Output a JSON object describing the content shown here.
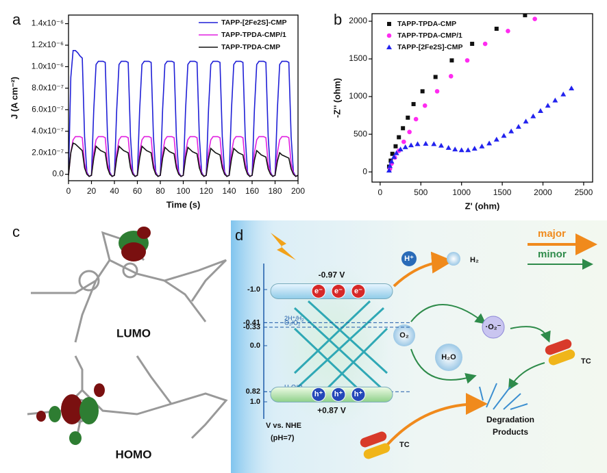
{
  "chart_data": [
    {
      "type": "line",
      "panel_label": "a",
      "xlabel": "Time (s)",
      "ylabel": "J (A cm⁻²)",
      "x": [
        0,
        2,
        4,
        6,
        8,
        10,
        12,
        14,
        16,
        18,
        20,
        22,
        24,
        26,
        28,
        30,
        32,
        34,
        36,
        38,
        40,
        42,
        44,
        46,
        48,
        50,
        52,
        54,
        56,
        58,
        60,
        62,
        64,
        66,
        68,
        70,
        72,
        74,
        76,
        78,
        80,
        82,
        84,
        86,
        88,
        90,
        92,
        94,
        96,
        98,
        100,
        102,
        104,
        106,
        108,
        110,
        112,
        114,
        116,
        118,
        120,
        122,
        124,
        126,
        128,
        130,
        132,
        134,
        136,
        138,
        140,
        142,
        144,
        146,
        148,
        150,
        152,
        154,
        156,
        158,
        160,
        162,
        164,
        166,
        168,
        170,
        172,
        174,
        176,
        178,
        180,
        182,
        184,
        186,
        188,
        190,
        192,
        194,
        196,
        198,
        200
      ],
      "xlim": [
        0,
        200
      ],
      "xticks": [
        0,
        20,
        40,
        60,
        80,
        100,
        120,
        140,
        160,
        180,
        200
      ],
      "ylim": [
        -6e-08,
        1.48e-06
      ],
      "yticks": [
        {
          "value": 0,
          "label": "0.0"
        },
        {
          "value": 2e-07,
          "label": "2.0x10⁻⁷"
        },
        {
          "value": 4e-07,
          "label": "4.0x10⁻⁷"
        },
        {
          "value": 6e-07,
          "label": "6.0x10⁻⁷"
        },
        {
          "value": 8e-07,
          "label": "8.0x10⁻⁷"
        },
        {
          "value": 1e-06,
          "label": "1.0x10⁻⁶"
        },
        {
          "value": 1.2e-06,
          "label": "1.2x10⁻⁶"
        },
        {
          "value": 1.4e-06,
          "label": "1.4x10⁻⁶"
        }
      ],
      "legend": "upper right",
      "series": [
        {
          "name": "TAPP-[2Fe2S]-CMP",
          "color": "#1f1fd6",
          "values": [
            -1e-08,
            9e-07,
            1.15e-06,
            1.15e-06,
            1.13e-06,
            1.1e-06,
            1.08e-06,
            3.5e-07,
            2e-08,
            -2e-08,
            -1e-08,
            6e-07,
            1.02e-06,
            1.05e-06,
            1.05e-06,
            1.05e-06,
            1.04e-06,
            3.5e-07,
            2e-08,
            -2e-08,
            -1e-08,
            6e-07,
            1.02e-06,
            1.05e-06,
            1.05e-06,
            1.05e-06,
            1.04e-06,
            3.5e-07,
            2e-08,
            -2e-08,
            -1e-08,
            6e-07,
            1.02e-06,
            1.05e-06,
            1.05e-06,
            1.05e-06,
            1.04e-06,
            3.5e-07,
            2e-08,
            -2e-08,
            -1e-08,
            6e-07,
            1.02e-06,
            1.05e-06,
            1.05e-06,
            1.05e-06,
            1.04e-06,
            3.5e-07,
            2e-08,
            -2e-08,
            -1e-08,
            6e-07,
            1.02e-06,
            1.05e-06,
            1.05e-06,
            1.05e-06,
            1.04e-06,
            3.5e-07,
            2e-08,
            -2e-08,
            -1e-08,
            6e-07,
            1.02e-06,
            1.05e-06,
            1.05e-06,
            1.05e-06,
            1.04e-06,
            3.5e-07,
            2e-08,
            -2e-08,
            -1e-08,
            6e-07,
            1.02e-06,
            1.05e-06,
            1.05e-06,
            1.05e-06,
            1.04e-06,
            3.5e-07,
            2e-08,
            -2e-08,
            -1e-08,
            6e-07,
            1.02e-06,
            1.05e-06,
            1.05e-06,
            1.05e-06,
            1.04e-06,
            3.5e-07,
            2e-08,
            -2e-08,
            -1e-08,
            6e-07,
            1.02e-06,
            1.05e-06,
            1.05e-06,
            1.05e-06,
            1.04e-06,
            3.5e-07,
            2e-08,
            -2e-08,
            -1e-08
          ]
        },
        {
          "name": "TAPP-TPDA-CMP/1",
          "color": "#e01fe0",
          "values": [
            -1e-08,
            2e-07,
            3.2e-07,
            3.5e-07,
            3.5e-07,
            3.5e-07,
            3.4e-07,
            1e-07,
            1e-08,
            -2e-08,
            -1e-08,
            2e-07,
            3.2e-07,
            3.5e-07,
            3.5e-07,
            3.5e-07,
            3.4e-07,
            1e-07,
            1e-08,
            -2e-08,
            -1e-08,
            2e-07,
            3.2e-07,
            3.5e-07,
            3.5e-07,
            3.5e-07,
            3.4e-07,
            1e-07,
            1e-08,
            -2e-08,
            -1e-08,
            2e-07,
            3.2e-07,
            3.5e-07,
            3.5e-07,
            3.5e-07,
            3.4e-07,
            1e-07,
            1e-08,
            -2e-08,
            -1e-08,
            2e-07,
            3.2e-07,
            3.5e-07,
            3.5e-07,
            3.5e-07,
            3.4e-07,
            1e-07,
            1e-08,
            -2e-08,
            -1e-08,
            2e-07,
            3.2e-07,
            3.5e-07,
            3.5e-07,
            3.5e-07,
            3.4e-07,
            1e-07,
            1e-08,
            -2e-08,
            -1e-08,
            2e-07,
            3.2e-07,
            3.5e-07,
            3.5e-07,
            3.5e-07,
            3.4e-07,
            1e-07,
            1e-08,
            -2e-08,
            -1e-08,
            2e-07,
            3.2e-07,
            3.5e-07,
            3.5e-07,
            3.5e-07,
            3.4e-07,
            1e-07,
            1e-08,
            -2e-08,
            -1e-08,
            2e-07,
            3.2e-07,
            3.5e-07,
            3.5e-07,
            3.5e-07,
            3.4e-07,
            1e-07,
            1e-08,
            -2e-08,
            -1e-08,
            2e-07,
            3.2e-07,
            3.5e-07,
            3.5e-07,
            3.5e-07,
            3.4e-07,
            1e-07,
            1e-08,
            -2e-08,
            -1e-08
          ]
        },
        {
          "name": "TAPP-TPDA-CMP",
          "color": "#111111",
          "values": [
            -1e-08,
            2e-07,
            2.9e-07,
            2.8e-07,
            2.6e-07,
            2.4e-07,
            2.2e-07,
            6e-08,
            0,
            -2e-08,
            -1e-08,
            1.5e-07,
            2.6e-07,
            2.4e-07,
            2.2e-07,
            2.1e-07,
            2e-07,
            6e-08,
            0,
            -2e-08,
            -1e-08,
            1.5e-07,
            2.6e-07,
            2.4e-07,
            2.2e-07,
            2.1e-07,
            2e-07,
            6e-08,
            0,
            -2e-08,
            -1e-08,
            1.5e-07,
            2.6e-07,
            2.4e-07,
            2.2e-07,
            2.1e-07,
            2e-07,
            6e-08,
            0,
            -2e-08,
            -1e-08,
            1.5e-07,
            2.5e-07,
            2.3e-07,
            2.1e-07,
            2e-07,
            1.9e-07,
            6e-08,
            0,
            -2e-08,
            -1e-08,
            1.5e-07,
            2.5e-07,
            2.3e-07,
            2.1e-07,
            2e-07,
            1.9e-07,
            6e-08,
            0,
            -2e-08,
            -1e-08,
            1.4e-07,
            2.4e-07,
            2.2e-07,
            2e-07,
            1.9e-07,
            1.8e-07,
            6e-08,
            0,
            -2e-08,
            -1e-08,
            1.4e-07,
            2.4e-07,
            2.2e-07,
            2e-07,
            1.9e-07,
            1.8e-07,
            6e-08,
            0,
            -2e-08,
            -1e-08,
            1.3e-07,
            2.2e-07,
            2e-07,
            1.8e-07,
            1.7e-07,
            1.6e-07,
            5e-08,
            0,
            -2e-08,
            -1e-08,
            1.2e-07,
            2e-07,
            1.8e-07,
            1.7e-07,
            1.6e-07,
            1.5e-07,
            5e-08,
            0,
            -2e-08,
            -1e-08
          ]
        }
      ]
    },
    {
      "type": "scatter",
      "panel_label": "b",
      "xlabel": "Z' (ohm)",
      "ylabel": "-Z'' (ohm)",
      "xlim": [
        -100,
        2610
      ],
      "xticks": [
        0,
        500,
        1000,
        1500,
        2000,
        2500
      ],
      "ylim": [
        -135,
        2100
      ],
      "yticks": [
        0,
        500,
        1000,
        1500,
        2000
      ],
      "legend": "upper left",
      "series": [
        {
          "name": "TAPP-TPDA-CMP",
          "color": "#111111",
          "marker": "square",
          "x": [
            110,
            130,
            150,
            190,
            230,
            280,
            340,
            410,
            520,
            680,
            880,
            1130,
            1430,
            1780
          ],
          "values": [
            70,
            150,
            240,
            340,
            460,
            580,
            720,
            900,
            1070,
            1260,
            1480,
            1700,
            1900,
            2080
          ]
        },
        {
          "name": "TAPP-TPDA-CMP/1",
          "color": "#ff2bf0",
          "marker": "circle",
          "x": [
            120,
            140,
            180,
            230,
            290,
            360,
            440,
            550,
            700,
            870,
            1070,
            1290,
            1570,
            1900
          ],
          "values": [
            40,
            110,
            190,
            280,
            400,
            530,
            700,
            880,
            1070,
            1270,
            1480,
            1700,
            1870,
            2030
          ]
        },
        {
          "name": "TAPP-[2Fe2S]-CMP",
          "color": "#2323ee",
          "marker": "triangle",
          "x": [
            110,
            120,
            140,
            170,
            200,
            250,
            310,
            380,
            460,
            560,
            660,
            750,
            840,
            920,
            1000,
            1080,
            1160,
            1250,
            1340,
            1430,
            1520,
            1610,
            1700,
            1790,
            1880,
            1970,
            2060,
            2150,
            2250,
            2350
          ],
          "values": [
            20,
            80,
            140,
            200,
            250,
            300,
            330,
            355,
            370,
            375,
            370,
            350,
            320,
            300,
            290,
            290,
            310,
            340,
            380,
            430,
            480,
            540,
            600,
            670,
            740,
            810,
            880,
            950,
            1030,
            1110
          ]
        }
      ]
    }
  ],
  "panel_c": {
    "panel_label": "c",
    "lumo": "LUMO",
    "homo": "HOMO"
  },
  "panel_d": {
    "panel_label": "d",
    "scale": {
      "ticks": [
        {
          "value": -1,
          "label": "-1.0"
        },
        -0.41,
        -0.33,
        {
          "value": 0,
          "label": "0.0"
        },
        0.82,
        {
          "value": 1,
          "label": "1.0"
        }
      ],
      "potentials": [
        {
          "value": -0.41,
          "label": "2H⁺/H₂"
        },
        {
          "value": -0.33,
          "label": "O₂/O₂⁻"
        },
        {
          "value": 0.82,
          "label": "H₂O/O₂"
        }
      ],
      "axis_label": "V vs. NHE",
      "condition": "(pH=7)"
    },
    "cb": {
      "value": -0.97,
      "label": "-0.97 V"
    },
    "vb": {
      "value": 0.87,
      "label": "+0.87 V"
    },
    "electrons": [
      "e⁻",
      "e⁻",
      "e⁻"
    ],
    "holes": [
      "h⁺",
      "h⁺",
      "h⁺"
    ],
    "proton": "H⁺",
    "hydrogen": "H₂",
    "major": "major",
    "minor": "minor",
    "superoxide": "·O₂⁻",
    "oxygen": "O₂",
    "water": "H₂O",
    "tc_top": "TC",
    "tc_bottom": "TC",
    "products_1": "Degradation",
    "products_2": "Products"
  }
}
